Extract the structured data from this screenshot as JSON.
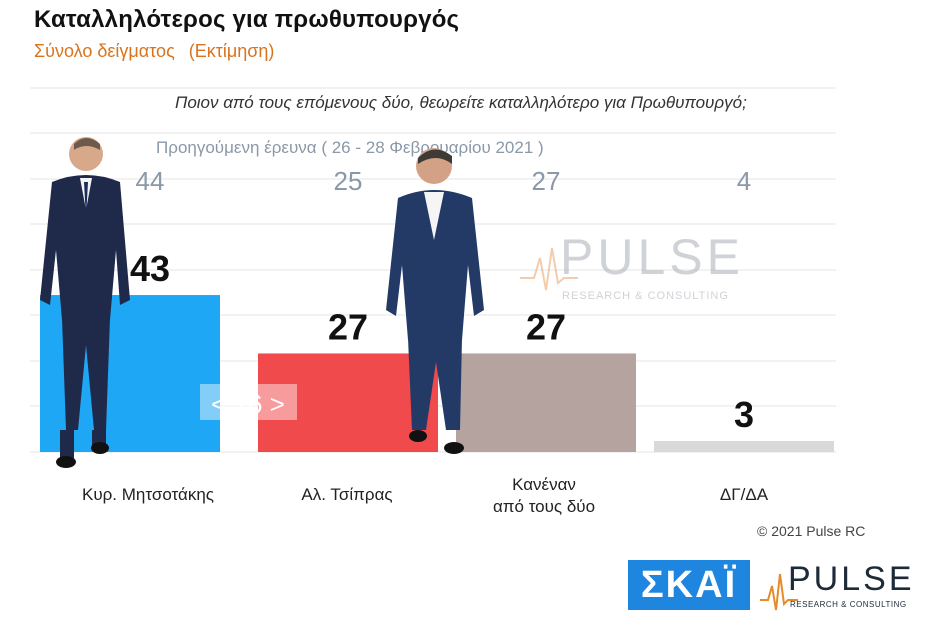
{
  "title": "Καταλληλότερος για πρωθυπουργός",
  "subtitle": "Σύνολο δείγματος",
  "subtitle_note": "(Εκτίμηση)",
  "question": "Ποιον από τους επόμενους δύο, θεωρείτε καταλληλότερο για Πρωθυπουργό;",
  "previous_label": "Προηγούμενη έρευνα ( 26 - 28 Φεβρουαρίου 2021 )",
  "gap_label": "< 16 >",
  "copyright": "© 2021 Pulse RC",
  "logos": {
    "skai": "ΣΚΑΪ",
    "pulse": "PULSE",
    "pulse_tagline": "RESEARCH & CONSULTING"
  },
  "watermark": {
    "word": "PULSE",
    "tagline": "RESEARCH & CONSULTING"
  },
  "colors": {
    "mitsotakis": "#1ea7f4",
    "tsipras": "#f04a4c",
    "neither": "#b5a39f",
    "dk": "#d9d9d9",
    "previous_text": "#8a98a8",
    "accent": "#d9731f"
  },
  "chart_data": {
    "type": "bar",
    "categories": [
      "Κυρ. Μητσοτάκης",
      "Αλ. Τσίπρας",
      "Κανέναν από τους δύο",
      "ΔΓ/ΔΑ"
    ],
    "category_lines": [
      [
        "Κυρ. Μητσοτάκης"
      ],
      [
        "Αλ. Τσίπρας"
      ],
      [
        "Κανέναν",
        "από τους δύο"
      ],
      [
        "ΔΓ/ΔΑ"
      ]
    ],
    "series": [
      {
        "name": "",
        "values": [
          43,
          27,
          27,
          3
        ]
      },
      {
        "name": "Προηγούμενη έρευνα ( 26 - 28 Φεβρουαρίου 2021 )",
        "values": [
          44,
          25,
          27,
          4
        ]
      }
    ],
    "ylim": [
      0,
      56
    ],
    "grid": true,
    "legend": "none"
  }
}
